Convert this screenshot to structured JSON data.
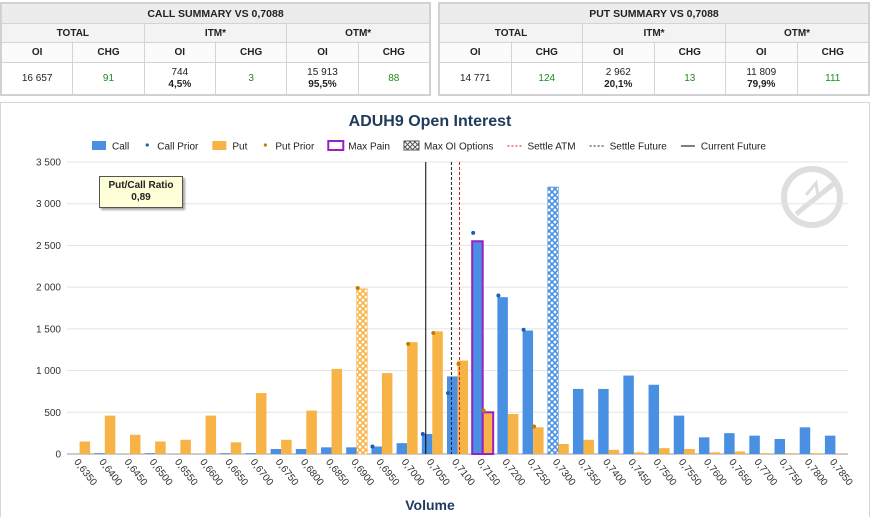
{
  "call_summary": {
    "title": "CALL SUMMARY VS 0,7088",
    "groups": [
      "TOTAL",
      "ITM*",
      "OTM*"
    ],
    "subheaders": [
      "OI",
      "CHG",
      "OI",
      "CHG",
      "OI",
      "CHG"
    ],
    "total_oi": "16 657",
    "total_chg": "91",
    "itm_oi": "744",
    "itm_pct": "4,5%",
    "itm_chg": "3",
    "otm_oi": "15 913",
    "otm_pct": "95,5%",
    "otm_chg": "88"
  },
  "put_summary": {
    "title": "PUT SUMMARY VS 0,7088",
    "groups": [
      "TOTAL",
      "ITM*",
      "OTM*"
    ],
    "subheaders": [
      "OI",
      "CHG",
      "OI",
      "CHG",
      "OI",
      "CHG"
    ],
    "total_oi": "14 771",
    "total_chg": "124",
    "itm_oi": "2 962",
    "itm_pct": "20,1%",
    "itm_chg": "13",
    "otm_oi": "11 809",
    "otm_pct": "79,9%",
    "otm_chg": "111"
  },
  "ratio": {
    "label": "Put/Call Ratio",
    "value": "0,89"
  },
  "chart_data": {
    "type": "bar",
    "title": "ADUH9 Open Interest",
    "xlabel": "Volume",
    "ylabel": "",
    "ylim": [
      0,
      3500
    ],
    "yticks": [
      0,
      500,
      1000,
      1500,
      2000,
      2500,
      3000,
      3500
    ],
    "ytick_labels": [
      "0",
      "500",
      "1 000",
      "1 500",
      "2 000",
      "2 500",
      "3 000",
      "3 500"
    ],
    "categories": [
      "0,6350",
      "0,6400",
      "0,6450",
      "0,6500",
      "0,6550",
      "0,6600",
      "0,6650",
      "0,6700",
      "0,6750",
      "0,6800",
      "0,6850",
      "0,6900",
      "0,6950",
      "0,7000",
      "0,7050",
      "0,7100",
      "0,7150",
      "0,7200",
      "0,7250",
      "0,7300",
      "0,7350",
      "0,7400",
      "0,7450",
      "0,7500",
      "0,7550",
      "0,7600",
      "0,7650",
      "0,7700",
      "0,7750",
      "0,7800",
      "0,7850"
    ],
    "legend": [
      {
        "name": "Call",
        "kind": "bar",
        "color": "#4a90e2"
      },
      {
        "name": "Call Prior",
        "kind": "dot",
        "color": "#1a5fb4"
      },
      {
        "name": "Put",
        "kind": "bar",
        "color": "#f7b345"
      },
      {
        "name": "Put Prior",
        "kind": "dot",
        "color": "#c77a00"
      },
      {
        "name": "Max Pain",
        "kind": "box",
        "color": "#9b1fc4"
      },
      {
        "name": "Max OI Options",
        "kind": "hatch",
        "color": "#555555"
      },
      {
        "name": "Settle ATM",
        "kind": "dash",
        "color": "#d02020"
      },
      {
        "name": "Settle Future",
        "kind": "dash",
        "color": "#222222"
      },
      {
        "name": "Current Future",
        "kind": "line",
        "color": "#000000"
      }
    ],
    "series": [
      {
        "name": "Call",
        "values": [
          0,
          10,
          0,
          10,
          0,
          0,
          10,
          10,
          60,
          60,
          80,
          80,
          90,
          130,
          240,
          930,
          2550,
          1880,
          1480,
          3200,
          780,
          780,
          940,
          830,
          460,
          200,
          250,
          220,
          180,
          320,
          220
        ]
      },
      {
        "name": "Call Prior",
        "values": [
          null,
          null,
          null,
          null,
          null,
          null,
          null,
          null,
          null,
          null,
          null,
          null,
          90,
          null,
          240,
          730,
          2650,
          1900,
          1490,
          null,
          null,
          null,
          null,
          null,
          null,
          null,
          null,
          null,
          null,
          null,
          null
        ]
      },
      {
        "name": "Put",
        "values": [
          150,
          460,
          230,
          150,
          170,
          460,
          140,
          730,
          170,
          520,
          1020,
          1980,
          970,
          1340,
          1470,
          1120,
          500,
          480,
          320,
          120,
          170,
          50,
          20,
          70,
          60,
          20,
          30,
          10,
          10,
          10,
          0
        ]
      },
      {
        "name": "Put Prior",
        "values": [
          null,
          null,
          null,
          null,
          null,
          null,
          null,
          null,
          null,
          null,
          null,
          1990,
          null,
          1320,
          1450,
          1080,
          520,
          null,
          330,
          null,
          null,
          null,
          null,
          null,
          null,
          null,
          null,
          null,
          null,
          null,
          null
        ]
      }
    ],
    "max_pain_strike": "0,7150",
    "max_oi_options": [
      {
        "series": "Call",
        "strike": "0,7300"
      },
      {
        "series": "Put",
        "strike": "0,6900"
      }
    ],
    "settle_atm": 0.7104,
    "settle_future": 0.7088,
    "current_future": 0.7037
  }
}
